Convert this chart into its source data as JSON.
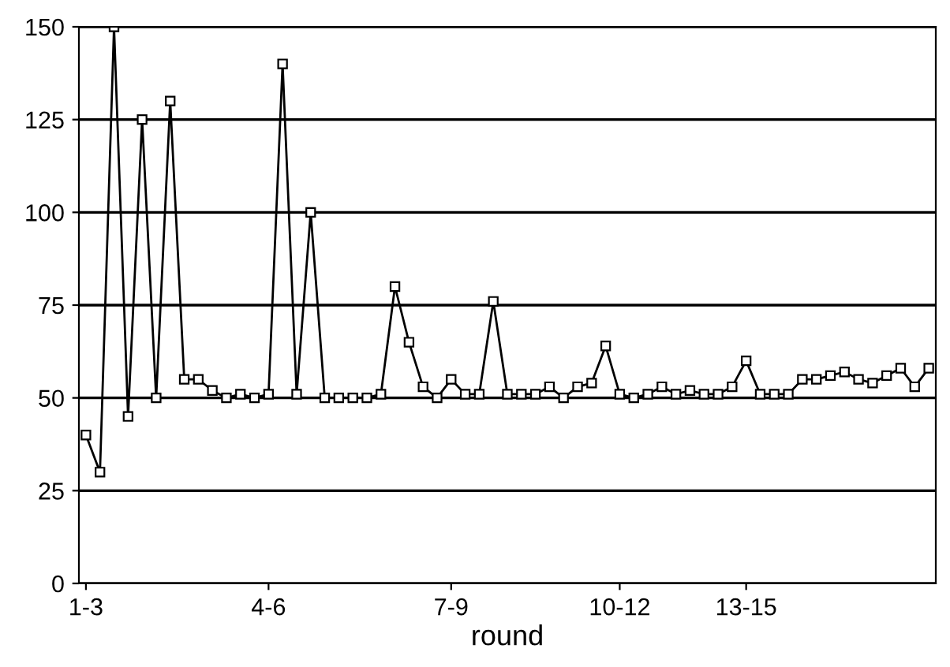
{
  "chart_data": {
    "type": "line",
    "xlabel": "round",
    "categories": [
      "1-3",
      null,
      null,
      null,
      null,
      null,
      null,
      null,
      null,
      null,
      null,
      null,
      null,
      "4-6",
      null,
      null,
      null,
      null,
      null,
      null,
      null,
      null,
      null,
      null,
      null,
      null,
      "7-9",
      null,
      null,
      null,
      null,
      null,
      null,
      null,
      null,
      null,
      null,
      null,
      "10-12",
      null,
      null,
      null,
      null,
      null,
      null,
      null,
      null,
      "13-15",
      null,
      null,
      null,
      null,
      null,
      null,
      null,
      null,
      null,
      null,
      null,
      null,
      null
    ],
    "series": [
      {
        "color": "#000000",
        "values": [
          40,
          30,
          150,
          45,
          125,
          50,
          130,
          55,
          55,
          52,
          50,
          51,
          50,
          51,
          140,
          51,
          100,
          50,
          50,
          50,
          50,
          51,
          80,
          65,
          53,
          50,
          55,
          51,
          51,
          76,
          51,
          51,
          51,
          53,
          50,
          53,
          54,
          64,
          51,
          50,
          51,
          53,
          51,
          52,
          51,
          51,
          53,
          60,
          51,
          51,
          51,
          55,
          55,
          56,
          57,
          55,
          54,
          56,
          58,
          53,
          58
        ]
      }
    ],
    "ylim": [
      0,
      150
    ],
    "yticks": [
      0,
      25,
      50,
      75,
      100,
      125,
      150
    ],
    "grid": "y",
    "marker": "square",
    "line_style": "solid"
  }
}
